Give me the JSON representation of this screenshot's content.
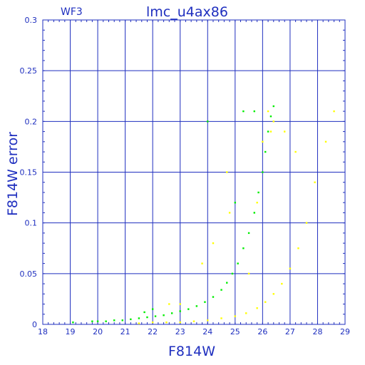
{
  "chart_data": {
    "type": "scatter",
    "title": "lmc_u4ax86",
    "panel_label": "WF3",
    "xlabel": "F814W",
    "ylabel": "F814W error",
    "xlim": [
      18,
      29
    ],
    "ylim": [
      0,
      0.3
    ],
    "xticks": [
      "18",
      "19",
      "20",
      "21",
      "22",
      "23",
      "24",
      "25",
      "26",
      "27",
      "28",
      "29"
    ],
    "yticks": [
      "0",
      "0.05",
      "0.1",
      "0.15",
      "0.2",
      "0.25",
      "0.3"
    ],
    "grid": true,
    "series": [
      {
        "color": "#00ee00",
        "points": [
          [
            19.1,
            0.002
          ],
          [
            19.8,
            0.003
          ],
          [
            20.0,
            0.003
          ],
          [
            20.3,
            0.003
          ],
          [
            20.6,
            0.004
          ],
          [
            20.9,
            0.004
          ],
          [
            21.2,
            0.005
          ],
          [
            21.5,
            0.006
          ],
          [
            21.8,
            0.007
          ],
          [
            22.1,
            0.008
          ],
          [
            22.4,
            0.009
          ],
          [
            22.7,
            0.011
          ],
          [
            23.0,
            0.013
          ],
          [
            23.3,
            0.015
          ],
          [
            23.6,
            0.018
          ],
          [
            23.9,
            0.022
          ],
          [
            24.2,
            0.027
          ],
          [
            24.5,
            0.034
          ],
          [
            24.7,
            0.041
          ],
          [
            24.9,
            0.05
          ],
          [
            25.1,
            0.06
          ],
          [
            25.3,
            0.075
          ],
          [
            25.5,
            0.09
          ],
          [
            25.7,
            0.11
          ],
          [
            25.85,
            0.13
          ],
          [
            26.0,
            0.15
          ],
          [
            26.1,
            0.17
          ],
          [
            26.2,
            0.19
          ],
          [
            26.3,
            0.205
          ],
          [
            26.4,
            0.215
          ],
          [
            24.0,
            0.2
          ],
          [
            25.0,
            0.12
          ],
          [
            25.3,
            0.21
          ],
          [
            25.7,
            0.21
          ],
          [
            22.0,
            0.015
          ],
          [
            21.7,
            0.012
          ]
        ]
      },
      {
        "color": "#ffff00",
        "points": [
          [
            21.5,
            0.001
          ],
          [
            22.0,
            0.002
          ],
          [
            22.5,
            0.002
          ],
          [
            23.0,
            0.002
          ],
          [
            23.5,
            0.003
          ],
          [
            24.0,
            0.004
          ],
          [
            24.5,
            0.006
          ],
          [
            25.0,
            0.008
          ],
          [
            25.4,
            0.011
          ],
          [
            25.8,
            0.016
          ],
          [
            26.1,
            0.022
          ],
          [
            26.4,
            0.03
          ],
          [
            26.7,
            0.04
          ],
          [
            27.0,
            0.055
          ],
          [
            27.3,
            0.075
          ],
          [
            27.6,
            0.1
          ],
          [
            27.9,
            0.14
          ],
          [
            28.3,
            0.18
          ],
          [
            28.6,
            0.21
          ],
          [
            26.2,
            0.21
          ],
          [
            26.3,
            0.19
          ],
          [
            26.4,
            0.2
          ],
          [
            26.0,
            0.18
          ],
          [
            25.8,
            0.12
          ],
          [
            24.8,
            0.11
          ],
          [
            24.2,
            0.08
          ],
          [
            23.8,
            0.06
          ],
          [
            23.0,
            0.02
          ],
          [
            22.6,
            0.02
          ],
          [
            27.2,
            0.17
          ],
          [
            26.8,
            0.19
          ],
          [
            24.7,
            0.15
          ],
          [
            25.5,
            0.05
          ]
        ]
      }
    ]
  }
}
